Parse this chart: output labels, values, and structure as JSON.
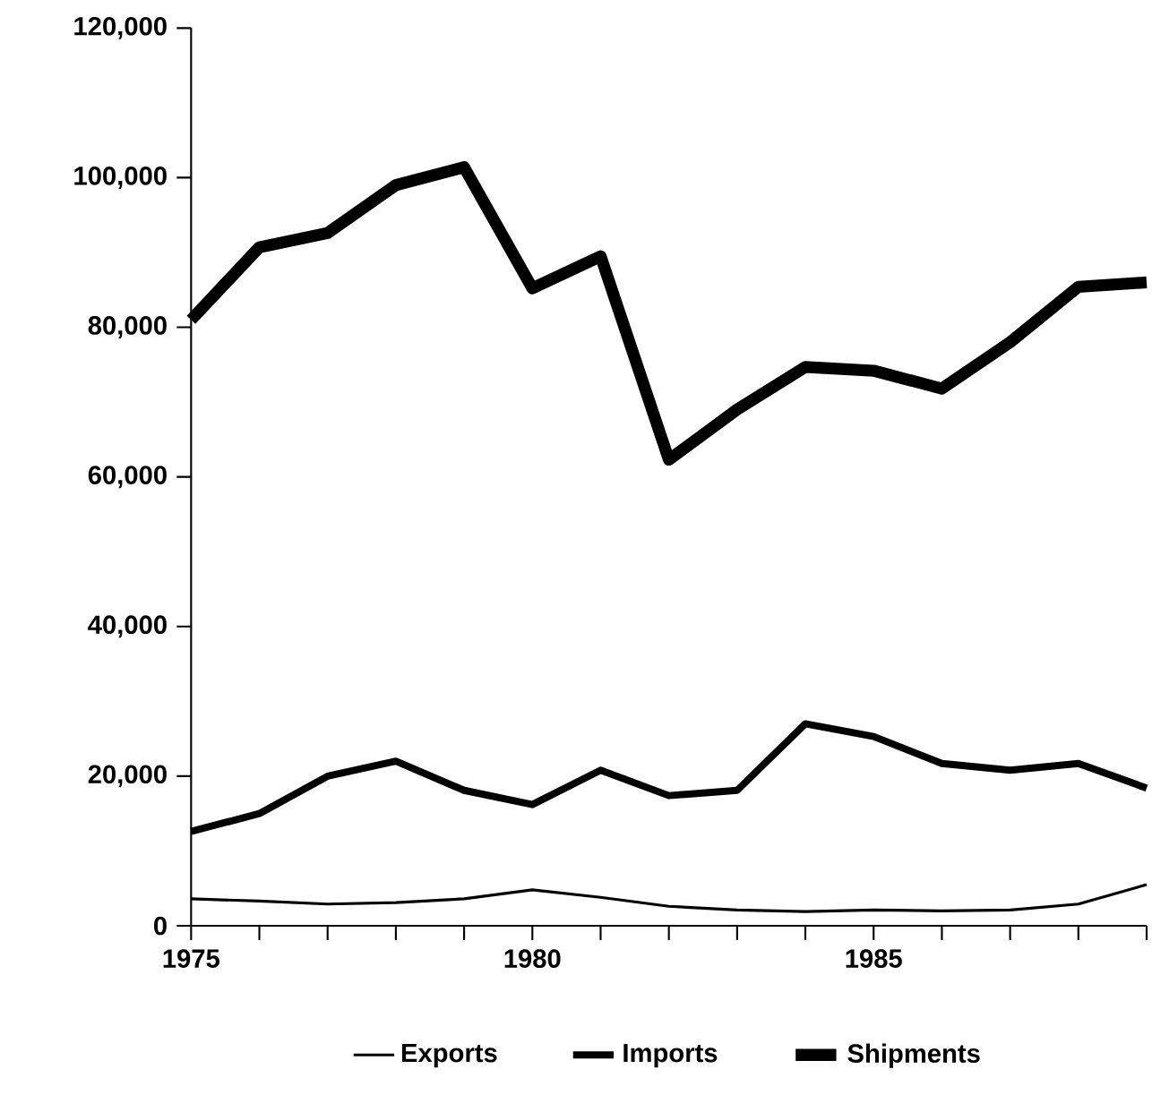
{
  "chart_data": {
    "type": "line",
    "x": [
      1975,
      1976,
      1977,
      1978,
      1979,
      1980,
      1981,
      1982,
      1983,
      1984,
      1985,
      1986,
      1987,
      1988,
      1989
    ],
    "series": [
      {
        "name": "Exports",
        "color": "#000000",
        "values": [
          3600,
          3300,
          2900,
          3100,
          3600,
          4800,
          3800,
          2600,
          2100,
          1900,
          2100,
          2000,
          2100,
          2900,
          5500
        ]
      },
      {
        "name": "Imports",
        "color": "#000000",
        "values": [
          12600,
          15000,
          20000,
          22000,
          18100,
          16200,
          20800,
          17400,
          18100,
          27000,
          25300,
          21700,
          20800,
          21700,
          18400
        ]
      },
      {
        "name": "Shipments",
        "color": "#000000",
        "values": [
          81000,
          90700,
          92600,
          99000,
          101400,
          85200,
          89500,
          62300,
          69000,
          74700,
          74200,
          71800,
          78000,
          85400,
          86000
        ]
      }
    ],
    "xlim": [
      1975,
      1989
    ],
    "xticks": [
      1975,
      {
        "value": 1976,
        "label": null
      },
      {
        "value": 1977,
        "label": null
      },
      {
        "value": 1978,
        "label": null
      },
      {
        "value": 1979,
        "label": null
      },
      1980,
      {
        "value": 1981,
        "label": null
      },
      {
        "value": 1982,
        "label": null
      },
      {
        "value": 1983,
        "label": null
      },
      {
        "value": 1984,
        "label": null
      },
      1985,
      {
        "value": 1986,
        "label": null
      },
      {
        "value": 1987,
        "label": null
      },
      {
        "value": 1988,
        "label": null
      },
      {
        "value": 1989,
        "label": null
      }
    ],
    "ylim": [
      0,
      120000
    ],
    "yticks": [
      {
        "value": 0,
        "label": "0"
      },
      {
        "value": 20000,
        "label": "20,000"
      },
      {
        "value": 40000,
        "label": "40,000"
      },
      {
        "value": 60000,
        "label": "60,000"
      },
      {
        "value": 80000,
        "label": "80,000"
      },
      {
        "value": 100000,
        "label": "100,000"
      },
      {
        "value": 120000,
        "label": "120,000"
      }
    ],
    "legend": "bottom",
    "grid": false,
    "marker": "none",
    "line_style": "solid"
  }
}
